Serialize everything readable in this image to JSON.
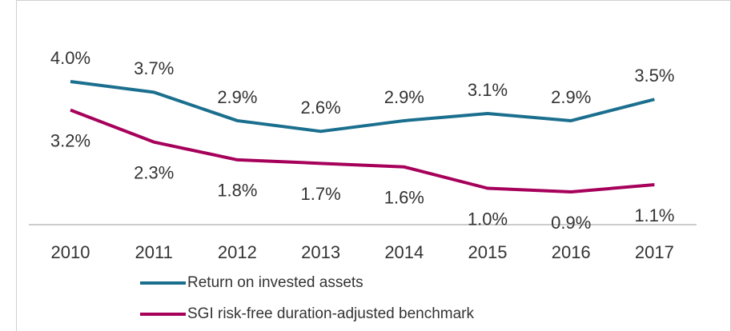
{
  "chart_data": {
    "type": "line",
    "categories": [
      "2010",
      "2011",
      "2012",
      "2013",
      "2014",
      "2015",
      "2016",
      "2017"
    ],
    "series": [
      {
        "name": "Return on invested assets",
        "color": "#1b6f8e",
        "values": [
          4.0,
          3.7,
          2.9,
          2.6,
          2.9,
          3.1,
          2.9,
          3.5
        ],
        "value_labels": [
          "4.0%",
          "3.7%",
          "2.9%",
          "2.6%",
          "2.9%",
          "3.1%",
          "2.9%",
          "3.5%"
        ]
      },
      {
        "name": "SGI risk-free duration-adjusted benchmark",
        "color": "#a6005b",
        "values": [
          3.2,
          2.3,
          1.8,
          1.7,
          1.6,
          1.0,
          0.9,
          1.1
        ],
        "value_labels": [
          "3.2%",
          "2.3%",
          "1.8%",
          "1.7%",
          "1.6%",
          "1.0%",
          "0.9%",
          "1.1%"
        ]
      }
    ],
    "ylim": [
      0,
      5
    ]
  }
}
